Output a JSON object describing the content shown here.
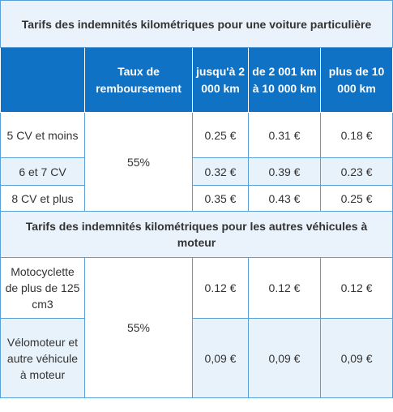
{
  "section1": {
    "title": "Tarifs des indemnités kilométriques pour une voiture particulière",
    "headers": [
      "",
      "Taux de remboursement",
      "jusqu'à 2 000 km",
      "de 2 001 km à 10 000 km",
      "plus de 10 000 km"
    ],
    "rate": "55%",
    "rows": [
      {
        "label": "5 CV et moins",
        "v1": "0.25 €",
        "v2": "0.31 €",
        "v3": "0.18 €"
      },
      {
        "label": "6 et 7 CV",
        "v1": "0.32 €",
        "v2": "0.39 €",
        "v3": "0.23 €"
      },
      {
        "label": "8 CV et plus",
        "v1": "0.35 €",
        "v2": "0.43 €",
        "v3": "0.25 €"
      }
    ]
  },
  "section2": {
    "title": "Tarifs des indemnités kilométriques pour les autres véhicules à moteur",
    "rate": "55%",
    "rows": [
      {
        "label": "Motocyclette de plus de 125 cm3",
        "v1": "0.12 €",
        "v2": "0.12 €",
        "v3": "0.12 €"
      },
      {
        "label": "Vélomoteur et autre véhicule à moteur",
        "v1": "0,09 €",
        "v2": "0,09 €",
        "v3": "0,09 €"
      }
    ]
  }
}
